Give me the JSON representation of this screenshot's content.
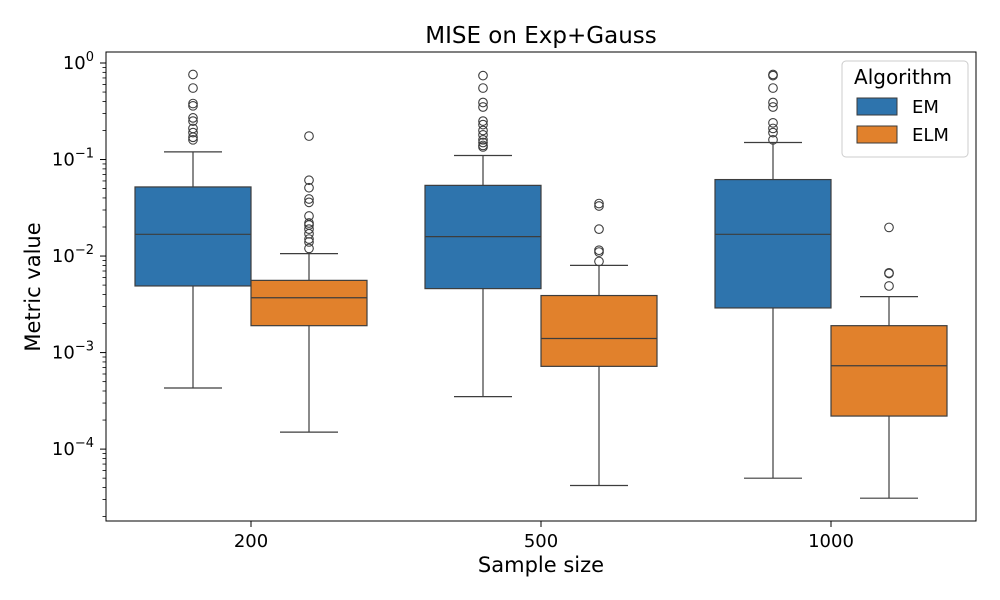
{
  "chart_data": {
    "type": "box",
    "title": "MISE on Exp+Gauss",
    "xlabel": "Sample size",
    "ylabel": "Metric value",
    "yscale": "log",
    "ylim": [
      1.8e-05,
      1.3
    ],
    "yticks": [
      {
        "value": 1,
        "base": "10",
        "exp": "0"
      },
      {
        "value": 0.1,
        "base": "10",
        "exp": "−1"
      },
      {
        "value": 0.01,
        "base": "10",
        "exp": "−2"
      },
      {
        "value": 0.001,
        "base": "10",
        "exp": "−3"
      },
      {
        "value": 0.0001,
        "base": "10",
        "exp": "−4"
      }
    ],
    "categories": [
      "200",
      "500",
      "1000"
    ],
    "legend": {
      "title": "Algorithm",
      "position": "top-right"
    },
    "series": [
      {
        "name": "EM",
        "color": "#2e74ad",
        "boxes": [
          {
            "whisker_low": 0.00043,
            "q1": 0.0049,
            "median": 0.0168,
            "q3": 0.052,
            "whisker_high": 0.12,
            "outliers": [
              0.76,
              0.55,
              0.38,
              0.36,
              0.27,
              0.25,
              0.21,
              0.19,
              0.17,
              0.16
            ]
          },
          {
            "whisker_low": 0.00035,
            "q1": 0.0046,
            "median": 0.0159,
            "q3": 0.054,
            "whisker_high": 0.11,
            "outliers": [
              0.74,
              0.55,
              0.39,
              0.35,
              0.25,
              0.23,
              0.2,
              0.18,
              0.16,
              0.15,
              0.14,
              0.135
            ]
          },
          {
            "whisker_low": 5e-05,
            "q1": 0.0029,
            "median": 0.0168,
            "q3": 0.062,
            "whisker_high": 0.15,
            "outliers": [
              0.76,
              0.74,
              0.55,
              0.39,
              0.35,
              0.24,
              0.21,
              0.19,
              0.16
            ]
          }
        ]
      },
      {
        "name": "ELM",
        "color": "#e1812c",
        "boxes": [
          {
            "whisker_low": 0.00015,
            "q1": 0.0019,
            "median": 0.0037,
            "q3": 0.0056,
            "whisker_high": 0.0106,
            "outliers": [
              0.175,
              0.061,
              0.051,
              0.039,
              0.036,
              0.026,
              0.022,
              0.021,
              0.019,
              0.017,
              0.015,
              0.014,
              0.012
            ]
          },
          {
            "whisker_low": 4.2e-05,
            "q1": 0.00072,
            "median": 0.0014,
            "q3": 0.0039,
            "whisker_high": 0.008,
            "outliers": [
              0.035,
              0.033,
              0.019,
              0.0115,
              0.011,
              0.0088
            ]
          },
          {
            "whisker_low": 3.1e-05,
            "q1": 0.00022,
            "median": 0.00073,
            "q3": 0.0019,
            "whisker_high": 0.0038,
            "outliers": [
              0.0198,
              0.0067,
              0.0066,
              0.0049
            ]
          }
        ]
      }
    ]
  }
}
